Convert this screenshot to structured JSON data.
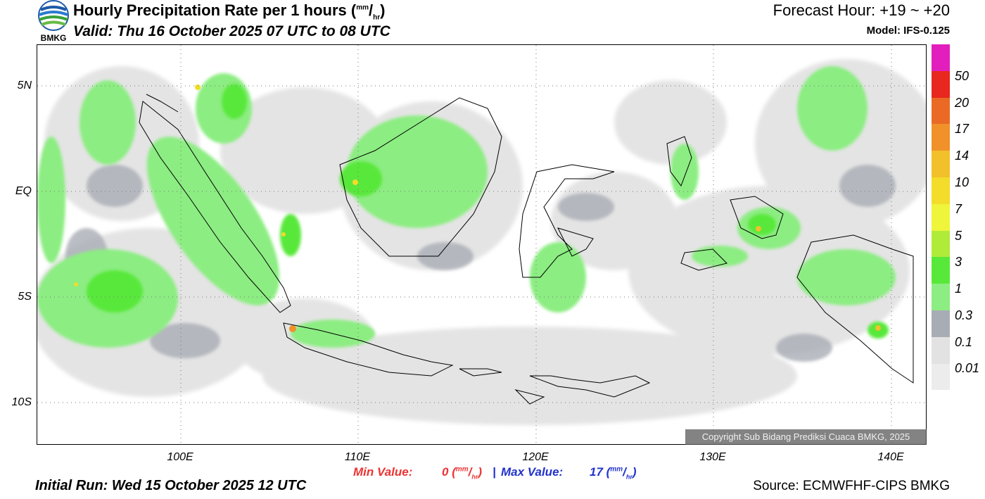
{
  "header": {
    "agency": "BMKG",
    "title": "Hourly Precipitation Rate per 1 hours",
    "title_unit_num": "mm",
    "title_unit_den": "hr",
    "valid": "Valid: Thu 16 October 2025 07 UTC to 08 UTC",
    "forecast_hour": "Forecast Hour: +19 ~ +20",
    "model": "Model: IFS-0.125"
  },
  "map": {
    "lat_labels": [
      "5N",
      "EQ",
      "5S",
      "10S"
    ],
    "lon_labels": [
      "100E",
      "110E",
      "120E",
      "130E",
      "140E"
    ],
    "copyright": "Copyright Sub Bidang Prediksi Cuaca BMKG, 2025"
  },
  "legend": {
    "labels": [
      "50",
      "20",
      "17",
      "14",
      "10",
      "7",
      "5",
      "3",
      "1",
      "0.3",
      "0.1",
      "0.01"
    ],
    "colors": [
      "#e21ebc",
      "#e8271f",
      "#ea6a25",
      "#f0912a",
      "#f2c02b",
      "#f3dc2a",
      "#eef53a",
      "#b0eb3a",
      "#58e83a",
      "#8ced82",
      "#a8acb5",
      "#e2e2e2",
      "#ececec"
    ]
  },
  "footer": {
    "min_label": "Min Value:",
    "min_value": "0",
    "separator": "|",
    "max_label": "Max Value:",
    "max_value": "17",
    "unit_num": "mm",
    "unit_den": "hr",
    "initial_run": "Initial Run: Wed 15 October 2025 12 UTC",
    "source": "Source: ECMWFHF-CIPS BMKG"
  }
}
